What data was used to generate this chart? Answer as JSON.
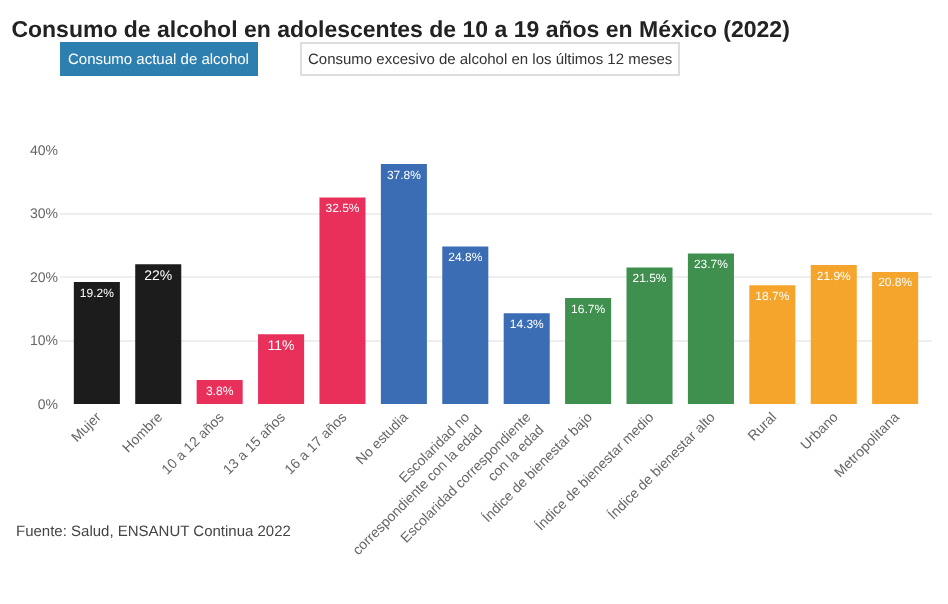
{
  "chart_data": {
    "type": "bar",
    "title": "Consumo de alcohol en adolescentes de 10 a 19 años en México (2022)",
    "categories": [
      "Mujer",
      "Hombre",
      "10 a 12 años",
      "13 a 15 años",
      "16 a 17 años",
      "No estudia",
      "Escolaridad no correspondiente con la edad",
      "Escolaridad correspondiente con la edad",
      "Índice de bienestar bajo",
      "Índice de bienestar medio",
      "Índice de bienestar alto",
      "Rural",
      "Urbano",
      "Metropolitana"
    ],
    "values": [
      19.2,
      22,
      3.8,
      11,
      32.5,
      37.8,
      24.8,
      14.3,
      16.7,
      21.5,
      23.7,
      18.7,
      21.9,
      20.8
    ],
    "value_labels": [
      "19.2%",
      "22%",
      "3.8%",
      "11%",
      "32.5%",
      "37.8%",
      "24.8%",
      "14.3%",
      "16.7%",
      "21.5%",
      "23.7%",
      "18.7%",
      "21.9%",
      "20.8%"
    ],
    "colors": [
      "#1c1c1c",
      "#1c1c1c",
      "#e8305a",
      "#e8305a",
      "#e8305a",
      "#3b6db5",
      "#3b6db5",
      "#3b6db5",
      "#3f8f4f",
      "#3f8f4f",
      "#3f8f4f",
      "#f5a42c",
      "#f5a42c",
      "#f5a42c"
    ],
    "ylim": [
      0,
      40
    ],
    "yticks": [
      {
        "value": 0,
        "label": "0%"
      },
      {
        "value": 10,
        "label": "10%"
      },
      {
        "value": 20,
        "label": "20%"
      },
      {
        "value": 30,
        "label": "30%"
      },
      {
        "value": 40,
        "label": "40%"
      }
    ],
    "grid": "y",
    "legend": false,
    "annotations": [
      "Consumo actual de alcohol",
      "Consumo excesivo de alcohol en los últimos 12 meses",
      "Fuente: Salud, ENSANUT Continua 2022"
    ]
  }
}
